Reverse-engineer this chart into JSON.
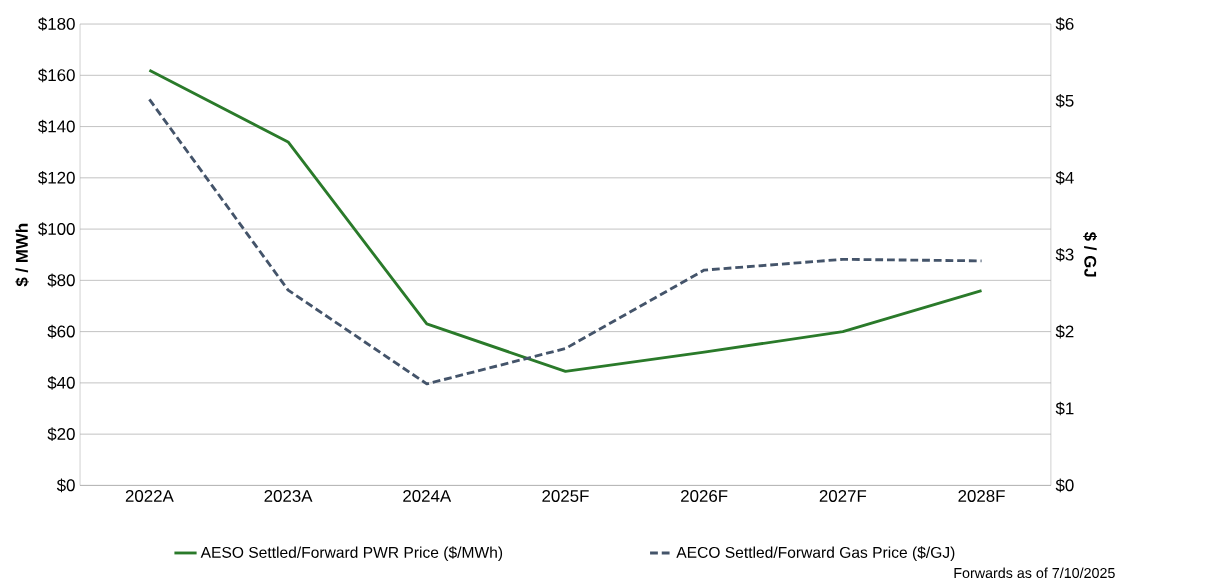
{
  "chart_data": {
    "type": "line",
    "categories": [
      "2022A",
      "2023A",
      "2024A",
      "2025F",
      "2026F",
      "2027F",
      "2028F"
    ],
    "ylabel": "$ / MWh",
    "y2label": "$ / GJ",
    "ylim": [
      0,
      180
    ],
    "yticks": [
      {
        "value": 0,
        "label": "$0"
      },
      {
        "value": 20,
        "label": "$20"
      },
      {
        "value": 40,
        "label": "$40"
      },
      {
        "value": 60,
        "label": "$60"
      },
      {
        "value": 80,
        "label": "$80"
      },
      {
        "value": 100,
        "label": "$100"
      },
      {
        "value": 120,
        "label": "$120"
      },
      {
        "value": 140,
        "label": "$140"
      },
      {
        "value": 160,
        "label": "$160"
      },
      {
        "value": 180,
        "label": "$180"
      }
    ],
    "y2lim": [
      0,
      6
    ],
    "y2ticks": [
      {
        "value": 0,
        "label": "$0"
      },
      {
        "value": 1,
        "label": "$1"
      },
      {
        "value": 2,
        "label": "$2"
      },
      {
        "value": 3,
        "label": "$3"
      },
      {
        "value": 4,
        "label": "$4"
      },
      {
        "value": 5,
        "label": "$5"
      },
      {
        "value": 6,
        "label": "$6"
      }
    ],
    "grid": "y",
    "legend": "bottom",
    "series": [
      {
        "name": "AESO Settled/Forward PWR Price ($/MWh)",
        "color": "#2a7a2a",
        "line_style": "solid",
        "values": [
          162,
          134,
          63,
          44.5,
          52,
          60,
          76
        ]
      },
      {
        "name": "AECO Settled/Forward Gas Price ($/GJ)",
        "color": "#44546a",
        "line_style": "dashed",
        "axis": "y2",
        "values": [
          5.02,
          2.54,
          1.32,
          1.78,
          2.8,
          2.94,
          2.92
        ]
      }
    ],
    "annotations": [
      "Forwards as of 7/10/2025"
    ]
  }
}
